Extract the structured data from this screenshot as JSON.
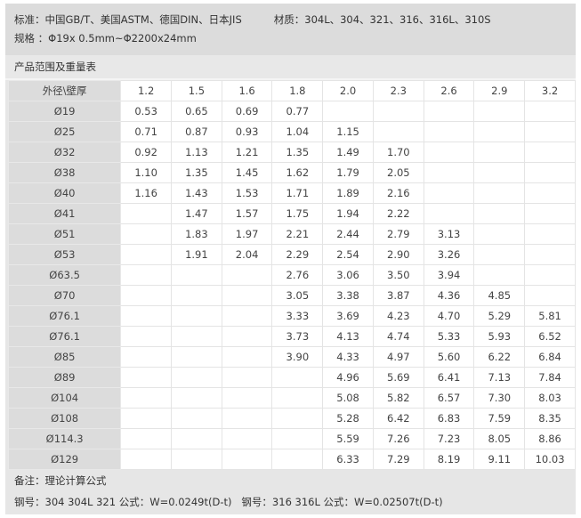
{
  "spec": {
    "standard": "标准：中国GB/T、美国ASTM、德国DIN、日本JIS",
    "material": "材质：304L、304、321、316、316L、310S",
    "size": "规格 ：Φ19x 0.5mm~Φ2200x24mm"
  },
  "table_title": "产品范围及重量表",
  "table": {
    "corner": "外径\\壁厚",
    "columns": [
      "1.2",
      "1.5",
      "1.6",
      "1.8",
      "2.0",
      "2.3",
      "2.6",
      "2.9",
      "3.2"
    ],
    "rows": [
      {
        "label": "Ø19",
        "values": [
          "0.53",
          "0.65",
          "0.69",
          "0.77",
          "",
          "",
          "",
          "",
          ""
        ]
      },
      {
        "label": "Ø25",
        "values": [
          "0.71",
          "0.87",
          "0.93",
          "1.04",
          "1.15",
          "",
          "",
          "",
          ""
        ]
      },
      {
        "label": "Ø32",
        "values": [
          "0.92",
          "1.13",
          "1.21",
          "1.35",
          "1.49",
          "1.70",
          "",
          "",
          ""
        ]
      },
      {
        "label": "Ø38",
        "values": [
          "1.10",
          "1.35",
          "1.45",
          "1.62",
          "1.79",
          "2.05",
          "",
          "",
          ""
        ]
      },
      {
        "label": "Ø40",
        "values": [
          "1.16",
          "1.43",
          "1.53",
          "1.71",
          "1.89",
          "2.16",
          "",
          "",
          ""
        ]
      },
      {
        "label": "Ø41",
        "values": [
          "",
          "1.47",
          "1.57",
          "1.75",
          "1.94",
          "2.22",
          "",
          "",
          ""
        ]
      },
      {
        "label": "Ø51",
        "values": [
          "",
          "1.83",
          "1.97",
          "2.21",
          "2.44",
          "2.79",
          "3.13",
          "",
          ""
        ]
      },
      {
        "label": "Ø53",
        "values": [
          "",
          "1.91",
          "2.04",
          "2.29",
          "2.54",
          "2.90",
          "3.26",
          "",
          ""
        ]
      },
      {
        "label": "Ø63.5",
        "values": [
          "",
          "",
          "",
          "2.76",
          "3.06",
          "3.50",
          "3.94",
          "",
          ""
        ]
      },
      {
        "label": "Ø70",
        "values": [
          "",
          "",
          "",
          "3.05",
          "3.38",
          "3.87",
          "4.36",
          "4.85",
          ""
        ]
      },
      {
        "label": "Ø76.1",
        "values": [
          "",
          "",
          "",
          "3.33",
          "3.69",
          "4.23",
          "4.70",
          "5.29",
          "5.81"
        ]
      },
      {
        "label": "Ø76.1",
        "values": [
          "",
          "",
          "",
          "3.73",
          "4.13",
          "4.74",
          "5.33",
          "5.93",
          "6.52"
        ]
      },
      {
        "label": "Ø85",
        "values": [
          "",
          "",
          "",
          "3.90",
          "4.33",
          "4.97",
          "5.60",
          "6.22",
          "6.84"
        ]
      },
      {
        "label": "Ø89",
        "values": [
          "",
          "",
          "",
          "",
          "4.96",
          "5.69",
          "6.41",
          "7.13",
          "7.84"
        ]
      },
      {
        "label": "Ø104",
        "values": [
          "",
          "",
          "",
          "",
          "5.08",
          "5.82",
          "6.57",
          "7.30",
          "8.03"
        ]
      },
      {
        "label": "Ø108",
        "values": [
          "",
          "",
          "",
          "",
          "5.28",
          "6.42",
          "6.83",
          "7.59",
          "8.35"
        ]
      },
      {
        "label": "Ø114.3",
        "values": [
          "",
          "",
          "",
          "",
          "5.59",
          "7.26",
          "7.23",
          "8.05",
          "8.86"
        ]
      },
      {
        "label": "Ø129",
        "values": [
          "",
          "",
          "",
          "",
          "6.33",
          "7.29",
          "8.19",
          "9.11",
          "10.03"
        ]
      }
    ]
  },
  "notes": {
    "remark": "备注：理论计算公式",
    "formula": "钢号：304 304L 321 公式：W=0.0249t(D-t)   钢号：316 316L 公式：W=0.02507t(D-t)"
  }
}
